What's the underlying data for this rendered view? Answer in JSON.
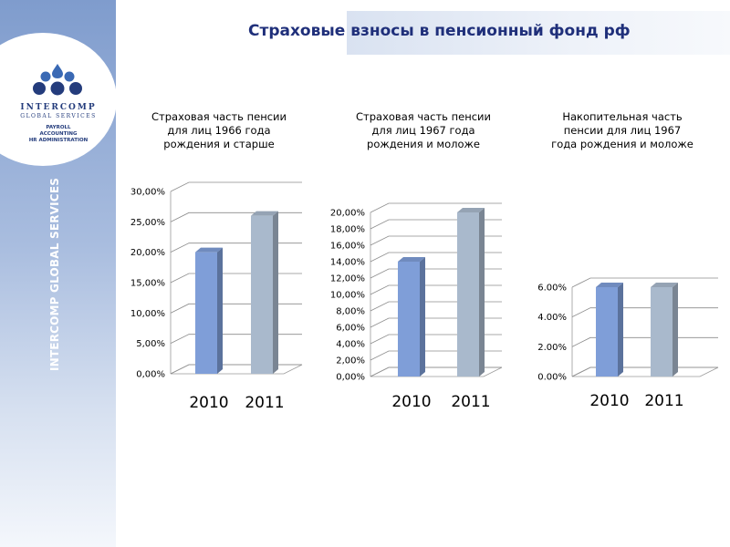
{
  "page": {
    "title": "Страховые взносы в пенсионный фонд рф"
  },
  "brand": {
    "name": "INTERCOMP",
    "subtitle": "GLOBAL SERVICES",
    "services": [
      "PAYROLL",
      "ACCOUNTING",
      "HR ADMINISTRATION"
    ],
    "vertical_text": "INTERCOMP GLOBAL SERVICES",
    "colors": {
      "navy": "#243c7c",
      "blue": "#3a69b4"
    }
  },
  "chart_data": [
    {
      "type": "bar",
      "title": "Страховая часть пенсии\nдля лиц 1966 года\nрождения и старше",
      "categories": [
        "2010",
        "2011"
      ],
      "series": [
        {
          "values": [
            20,
            26
          ]
        }
      ],
      "bar_colors": [
        "#7f9ed8",
        "#a9b9cc"
      ],
      "ylim": [
        0,
        30
      ],
      "yticks": [
        "0,00%",
        "5,00%",
        "10,00%",
        "15,00%",
        "20,00%",
        "25,00%",
        "30,00%"
      ],
      "grid": true
    },
    {
      "type": "bar",
      "title": "Страховая часть пенсии\nдля лиц 1967 года\nрождения и моложе",
      "categories": [
        "2010",
        "2011"
      ],
      "series": [
        {
          "values": [
            14,
            20
          ]
        }
      ],
      "bar_colors": [
        "#7f9ed8",
        "#a9b9cc"
      ],
      "ylim": [
        0,
        20
      ],
      "yticks": [
        "0,00%",
        "2,00%",
        "4,00%",
        "6,00%",
        "8,00%",
        "10,00%",
        "12,00%",
        "14,00%",
        "16,00%",
        "18,00%",
        "20,00%"
      ],
      "grid": true
    },
    {
      "type": "bar",
      "title": "Накопительная часть\nпенсии для лиц 1967\nгода рождения и моложе",
      "categories": [
        "2010",
        "2011"
      ],
      "series": [
        {
          "values": [
            6,
            6
          ]
        }
      ],
      "bar_colors": [
        "#7f9ed8",
        "#a9b9cc"
      ],
      "ylim": [
        0,
        6
      ],
      "yticks": [
        "0.00%",
        "2.00%",
        "4.00%",
        "6.00%"
      ],
      "grid": true
    }
  ]
}
